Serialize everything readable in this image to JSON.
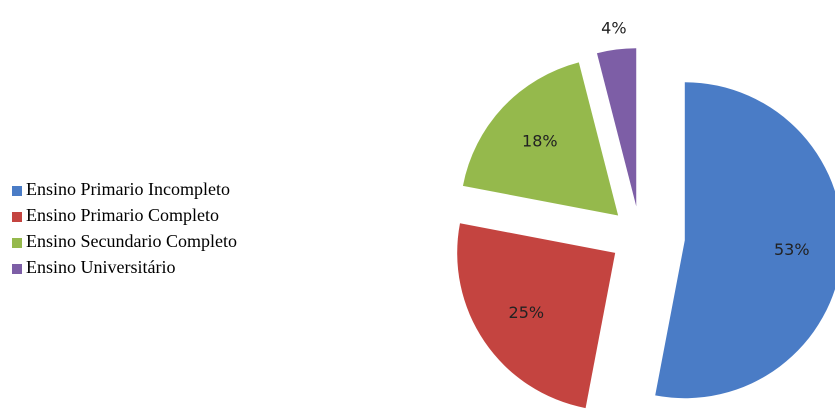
{
  "chart_data": {
    "type": "pie",
    "categories": [
      "Ensino Primario Incompleto",
      "Ensino Primario Completo",
      "Ensino Secundario Completo",
      "Ensino Universitário"
    ],
    "values": [
      53,
      25,
      18,
      4
    ],
    "value_labels": [
      "53%",
      "25%",
      "18%",
      "4%"
    ],
    "colors": [
      "#4a7cc6",
      "#c44440",
      "#95b94c",
      "#7d5ea6"
    ],
    "exploded": true,
    "legend": "left"
  }
}
